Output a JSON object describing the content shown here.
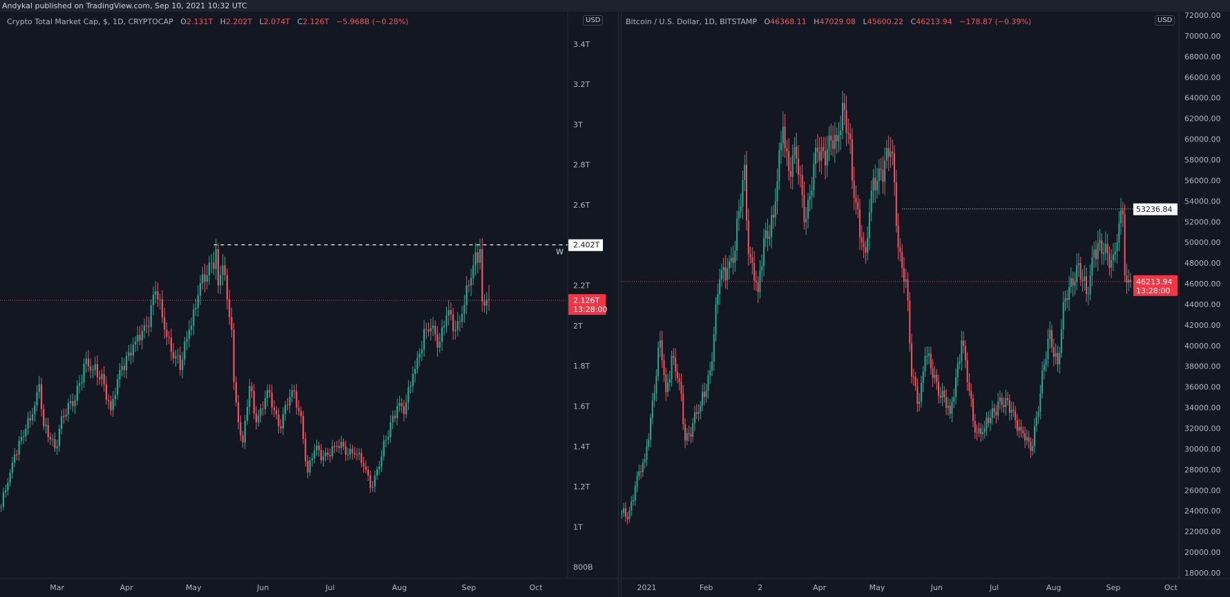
{
  "publish_line": "Andykal published on TradingView.com, Sep 10, 2021 10:32 UTC",
  "colors": {
    "up": "#22ab94",
    "down": "#f7525f",
    "background": "#131722",
    "axis_text": "#b2b5be",
    "last_price_label": "#f23645"
  },
  "left": {
    "legend": {
      "title": "Crypto Total Market Cap, $, 1D, CRYPTOCAP",
      "o_label": "O",
      "o": "2.131T",
      "h_label": "H",
      "h": "2.202T",
      "l_label": "L",
      "l": "2.074T",
      "c_label": "C",
      "c": "2.126T",
      "change": "−5.968B (−0.28%)"
    },
    "currency_button": "USD",
    "horizontal_line_label": "2.402T",
    "horizontal_line_note": "W",
    "last_price_label": "2.126T",
    "countdown": "13:28:00"
  },
  "right": {
    "legend": {
      "title": "Bitcoin / U.S. Dollar, 1D, BITSTAMP",
      "o_label": "O",
      "o": "46368.11",
      "h_label": "H",
      "h": "47029.08",
      "l_label": "L",
      "l": "45600.22",
      "c_label": "C",
      "c": "46213.94",
      "change": "−178.87 (−0.39%)"
    },
    "currency_button": "USD",
    "horizontal_line_label": "53236.84",
    "last_price_label": "46213.94",
    "countdown": "13:28:00"
  },
  "chart_data": [
    {
      "type": "candlestick",
      "title": "Crypto Total Market Cap, $, 1D, CRYPTOCAP",
      "unit": "T",
      "ylim": [
        0.8,
        3.4
      ],
      "y_ticks": [
        {
          "v": 3.4,
          "label": "3.4T"
        },
        {
          "v": 3.2,
          "label": "3.2T"
        },
        {
          "v": 3.0,
          "label": "3T"
        },
        {
          "v": 2.8,
          "label": "2.8T"
        },
        {
          "v": 2.6,
          "label": "2.6T"
        },
        {
          "v": 2.2,
          "label": "2.2T"
        },
        {
          "v": 2.0,
          "label": "2T"
        },
        {
          "v": 1.8,
          "label": "1.8T"
        },
        {
          "v": 1.6,
          "label": "1.6T"
        },
        {
          "v": 1.4,
          "label": "1.4T"
        },
        {
          "v": 1.2,
          "label": "1.2T"
        },
        {
          "v": 1.0,
          "label": "1T"
        },
        {
          "v": 0.8,
          "label": "800B"
        }
      ],
      "x_ticks": [
        {
          "date": "2021-03-01",
          "label": "Mar"
        },
        {
          "date": "2021-04-01",
          "label": "Apr"
        },
        {
          "date": "2021-05-01",
          "label": "May"
        },
        {
          "date": "2021-06-01",
          "label": "Jun"
        },
        {
          "date": "2021-07-01",
          "label": "Jul"
        },
        {
          "date": "2021-08-01",
          "label": "Aug"
        },
        {
          "date": "2021-09-01",
          "label": "Sep"
        },
        {
          "date": "2021-10-01",
          "label": "Oct"
        }
      ],
      "horizontal_line": 2.402,
      "last_price": 2.126,
      "last_candle": {
        "date": "2021-09-10",
        "o": 2.131,
        "h": 2.202,
        "l": 2.074,
        "c": 2.126
      },
      "close_waypoints": [
        [
          "2021-02-04",
          1.1
        ],
        [
          "2021-02-07",
          1.22
        ],
        [
          "2021-02-10",
          1.36
        ],
        [
          "2021-02-14",
          1.45
        ],
        [
          "2021-02-18",
          1.56
        ],
        [
          "2021-02-21",
          1.71
        ],
        [
          "2021-02-23",
          1.5
        ],
        [
          "2021-02-28",
          1.39
        ],
        [
          "2021-03-03",
          1.55
        ],
        [
          "2021-03-08",
          1.6
        ],
        [
          "2021-03-13",
          1.81
        ],
        [
          "2021-03-17",
          1.78
        ],
        [
          "2021-03-21",
          1.76
        ],
        [
          "2021-03-25",
          1.58
        ],
        [
          "2021-03-30",
          1.8
        ],
        [
          "2021-04-05",
          1.92
        ],
        [
          "2021-04-10",
          2.0
        ],
        [
          "2021-04-14",
          2.17
        ],
        [
          "2021-04-18",
          1.98
        ],
        [
          "2021-04-23",
          1.85
        ],
        [
          "2021-04-25",
          1.78
        ],
        [
          "2021-04-29",
          1.98
        ],
        [
          "2021-05-03",
          2.15
        ],
        [
          "2021-05-07",
          2.25
        ],
        [
          "2021-05-11",
          2.38
        ],
        [
          "2021-05-12",
          2.2
        ],
        [
          "2021-05-14",
          2.3
        ],
        [
          "2021-05-16",
          2.13
        ],
        [
          "2021-05-18",
          1.98
        ],
        [
          "2021-05-19",
          1.72
        ],
        [
          "2021-05-21",
          1.52
        ],
        [
          "2021-05-23",
          1.42
        ],
        [
          "2021-05-26",
          1.7
        ],
        [
          "2021-05-29",
          1.52
        ],
        [
          "2021-06-03",
          1.68
        ],
        [
          "2021-06-08",
          1.5
        ],
        [
          "2021-06-14",
          1.68
        ],
        [
          "2021-06-18",
          1.55
        ],
        [
          "2021-06-21",
          1.27
        ],
        [
          "2021-06-24",
          1.38
        ],
        [
          "2021-06-28",
          1.35
        ],
        [
          "2021-07-03",
          1.4
        ],
        [
          "2021-07-07",
          1.4
        ],
        [
          "2021-07-12",
          1.36
        ],
        [
          "2021-07-16",
          1.3
        ],
        [
          "2021-07-20",
          1.2
        ],
        [
          "2021-07-24",
          1.35
        ],
        [
          "2021-07-28",
          1.52
        ],
        [
          "2021-07-31",
          1.6
        ],
        [
          "2021-08-03",
          1.56
        ],
        [
          "2021-08-07",
          1.76
        ],
        [
          "2021-08-10",
          1.86
        ],
        [
          "2021-08-13",
          1.98
        ],
        [
          "2021-08-16",
          2.0
        ],
        [
          "2021-08-19",
          1.92
        ],
        [
          "2021-08-22",
          2.05
        ],
        [
          "2021-08-26",
          1.98
        ],
        [
          "2021-08-29",
          2.06
        ],
        [
          "2021-09-01",
          2.2
        ],
        [
          "2021-09-03",
          2.3
        ],
        [
          "2021-09-06",
          2.38
        ],
        [
          "2021-09-07",
          2.12
        ],
        [
          "2021-09-08",
          2.1
        ],
        [
          "2021-09-09",
          2.13
        ],
        [
          "2021-09-10",
          2.126
        ]
      ]
    },
    {
      "type": "candlestick",
      "title": "Bitcoin / U.S. Dollar, 1D, BITSTAMP",
      "unit": "USD",
      "ylim": [
        18000,
        72000
      ],
      "y_ticks": [
        72000,
        70000,
        68000,
        66000,
        64000,
        62000,
        60000,
        58000,
        56000,
        54000,
        52000,
        50000,
        48000,
        46000,
        44000,
        42000,
        40000,
        38000,
        36000,
        34000,
        32000,
        30000,
        28000,
        26000,
        24000,
        22000,
        20000,
        18000
      ],
      "y_tick_labels": [
        "72000.00",
        "70000.00",
        "68000.00",
        "66000.00",
        "64000.00",
        "62000.00",
        "60000.00",
        "58000.00",
        "56000.00",
        "54000.00",
        "52000.00",
        "50000.00",
        "48000.00",
        "46000.00",
        "44000.00",
        "42000.00",
        "40000.00",
        "38000.00",
        "36000.00",
        "34000.00",
        "32000.00",
        "30000.00",
        "28000.00",
        "26000.00",
        "24000.00",
        "22000.00",
        "20000.00",
        "18000.00"
      ],
      "x_ticks": [
        {
          "date": "2021-01-01",
          "label": "2021"
        },
        {
          "date": "2021-02-01",
          "label": "Feb"
        },
        {
          "date": "2021-03-01",
          "label": "2"
        },
        {
          "date": "2021-04-01",
          "label": "Apr"
        },
        {
          "date": "2021-05-01",
          "label": "May"
        },
        {
          "date": "2021-06-01",
          "label": "Jun"
        },
        {
          "date": "2021-07-01",
          "label": "Jul"
        },
        {
          "date": "2021-08-01",
          "label": "Aug"
        },
        {
          "date": "2021-09-01",
          "label": "Sep"
        },
        {
          "date": "2021-10-01",
          "label": "Oct"
        }
      ],
      "horizontal_line": 53236.84,
      "last_price": 46213.94,
      "last_candle": {
        "date": "2021-09-10",
        "o": 46368.11,
        "h": 47029.08,
        "l": 45600.22,
        "c": 46213.94
      },
      "close_waypoints": [
        [
          "2020-12-19",
          23800
        ],
        [
          "2020-12-22",
          23200
        ],
        [
          "2020-12-26",
          26400
        ],
        [
          "2020-12-31",
          29000
        ],
        [
          "2021-01-03",
          33000
        ],
        [
          "2021-01-08",
          40500
        ],
        [
          "2021-01-11",
          35500
        ],
        [
          "2021-01-14",
          39000
        ],
        [
          "2021-01-18",
          36500
        ],
        [
          "2021-01-21",
          30800
        ],
        [
          "2021-01-25",
          32500
        ],
        [
          "2021-01-29",
          34200
        ],
        [
          "2021-02-03",
          37600
        ],
        [
          "2021-02-08",
          46400
        ],
        [
          "2021-02-12",
          47500
        ],
        [
          "2021-02-16",
          49200
        ],
        [
          "2021-02-21",
          57500
        ],
        [
          "2021-02-23",
          48900
        ],
        [
          "2021-02-28",
          45200
        ],
        [
          "2021-03-03",
          50400
        ],
        [
          "2021-03-08",
          52400
        ],
        [
          "2021-03-13",
          61200
        ],
        [
          "2021-03-16",
          56900
        ],
        [
          "2021-03-20",
          58100
        ],
        [
          "2021-03-25",
          52300
        ],
        [
          "2021-03-31",
          58800
        ],
        [
          "2021-04-05",
          59000
        ],
        [
          "2021-04-10",
          59800
        ],
        [
          "2021-04-13",
          63500
        ],
        [
          "2021-04-17",
          60000
        ],
        [
          "2021-04-18",
          56000
        ],
        [
          "2021-04-23",
          50000
        ],
        [
          "2021-04-25",
          49000
        ],
        [
          "2021-04-28",
          55000
        ],
        [
          "2021-05-03",
          57000
        ],
        [
          "2021-05-08",
          58800
        ],
        [
          "2021-05-10",
          55800
        ],
        [
          "2021-05-12",
          49500
        ],
        [
          "2021-05-16",
          46400
        ],
        [
          "2021-05-19",
          37000
        ],
        [
          "2021-05-23",
          34600
        ],
        [
          "2021-05-26",
          39000
        ],
        [
          "2021-06-01",
          36500
        ],
        [
          "2021-06-08",
          33400
        ],
        [
          "2021-06-14",
          40500
        ],
        [
          "2021-06-21",
          31600
        ],
        [
          "2021-06-26",
          32000
        ],
        [
          "2021-07-03",
          34600
        ],
        [
          "2021-07-10",
          33800
        ],
        [
          "2021-07-15",
          31800
        ],
        [
          "2021-07-20",
          29800
        ],
        [
          "2021-07-25",
          35400
        ],
        [
          "2021-07-30",
          41500
        ],
        [
          "2021-08-03",
          38200
        ],
        [
          "2021-08-07",
          44600
        ],
        [
          "2021-08-13",
          47800
        ],
        [
          "2021-08-18",
          45000
        ],
        [
          "2021-08-22",
          49300
        ],
        [
          "2021-08-27",
          49000
        ],
        [
          "2021-09-01",
          48800
        ],
        [
          "2021-09-03",
          50000
        ],
        [
          "2021-09-06",
          52700
        ],
        [
          "2021-09-07",
          46800
        ],
        [
          "2021-09-08",
          46100
        ],
        [
          "2021-09-09",
          46400
        ],
        [
          "2021-09-10",
          46213.94
        ]
      ]
    }
  ]
}
